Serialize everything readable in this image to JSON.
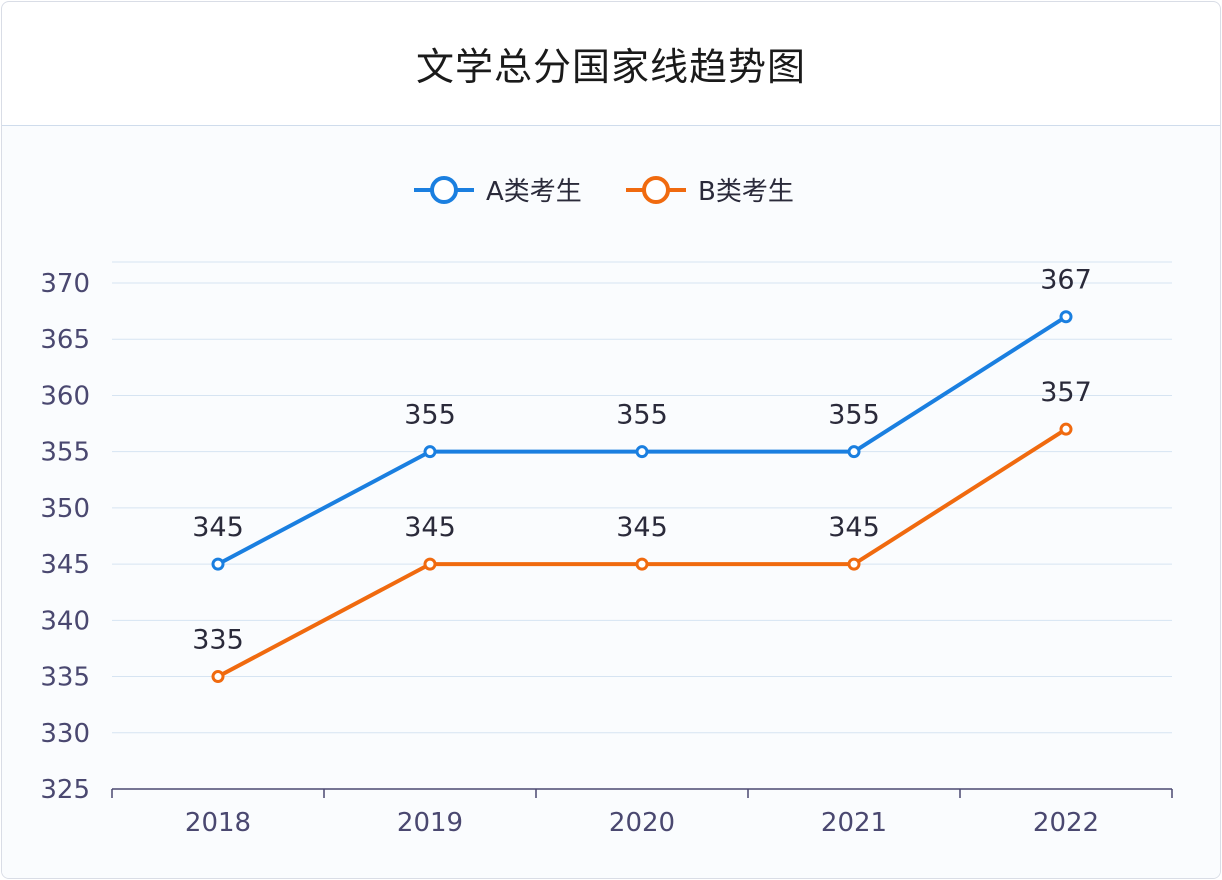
{
  "chart_data": {
    "type": "line",
    "title": "文学总分国家线趋势图",
    "categories": [
      "2018",
      "2019",
      "2020",
      "2021",
      "2022"
    ],
    "series": [
      {
        "name": "A类考生",
        "values": [
          345,
          355,
          355,
          355,
          367
        ],
        "color": "#1a7fe0"
      },
      {
        "name": "B类考生",
        "values": [
          335,
          345,
          345,
          345,
          357
        ],
        "color": "#f06a0f"
      }
    ],
    "ylim": [
      325,
      370
    ],
    "yticks": [
      325,
      330,
      335,
      340,
      345,
      350,
      355,
      360,
      365,
      370
    ],
    "legend": "top-center",
    "grid": true
  }
}
